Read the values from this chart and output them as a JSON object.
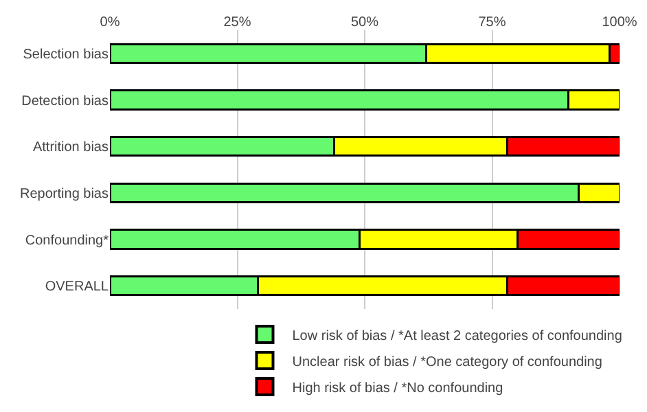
{
  "chart_data": {
    "type": "bar",
    "orientation": "horizontal",
    "stacked": true,
    "categories": [
      "Selection bias",
      "Detection bias",
      "Attrition bias",
      "Reporting bias",
      "Confounding*",
      "OVERALL"
    ],
    "series": [
      {
        "name": "Low risk of bias / *At least 2 categories of confounding",
        "color": "#66f86e",
        "values": [
          62,
          90,
          44,
          92,
          49,
          29
        ]
      },
      {
        "name": "Unclear risk of bias / *One category of confounding",
        "color": "#ffff00",
        "values": [
          36,
          10,
          34,
          8,
          31,
          49
        ]
      },
      {
        "name": "High risk of bias / *No confounding",
        "color": "#ff0000",
        "values": [
          2,
          null,
          22,
          null,
          20,
          22
        ]
      }
    ],
    "xlim": [
      0,
      100
    ],
    "xticks": [
      {
        "value": 0,
        "label": "0%"
      },
      {
        "value": 25,
        "label": "25%"
      },
      {
        "value": 50,
        "label": "50%"
      },
      {
        "value": 75,
        "label": "75%"
      },
      {
        "value": 100,
        "label": "100%"
      }
    ],
    "grid": "x",
    "legend": "bottom"
  }
}
